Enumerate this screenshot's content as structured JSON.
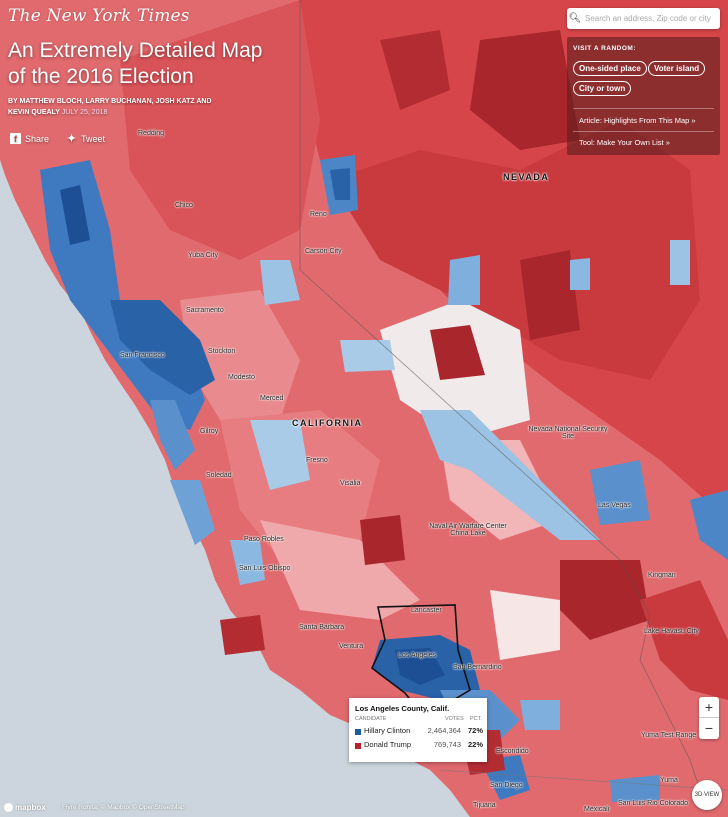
{
  "masthead": "The New York Times",
  "article": {
    "title": "An Extremely Detailed Map of the 2016 Election",
    "byline_authors": "By MATTHEW BLOCH, LARRY BUCHANAN, JOSH KATZ and KEVIN QUEALY",
    "byline_date": "JULY 25, 2018"
  },
  "share": {
    "facebook_label": "Share",
    "twitter_label": "Tweet"
  },
  "search": {
    "placeholder": "Search an address, Zip code or city"
  },
  "random_panel": {
    "heading": "VISIT A RANDOM:",
    "buttons": [
      "One-sided place",
      "Voter island",
      "City or town"
    ],
    "links": [
      "Article: Highlights From This Map »",
      "Tool: Make Your Own List »"
    ]
  },
  "map_labels": {
    "states": [
      "NEVADA",
      "CALIFORNIA"
    ],
    "places": [
      "Redding",
      "Chico",
      "Yuba City",
      "Reno",
      "Carson City",
      "Sacramento",
      "San Francisco",
      "Stockton",
      "Modesto",
      "Gilroy",
      "Merced",
      "Soledad",
      "Fresno",
      "Visalia",
      "Nevada National Security Site",
      "Las Vegas",
      "Naval Air Warfare Center China Lake",
      "Paso Robles",
      "San Luis Obispo",
      "Kingman",
      "Lancaster",
      "Santa Barbara",
      "Ventura",
      "Los Angeles",
      "San Bernardino",
      "Lake Havasu City",
      "Yuma Test Range",
      "Escondido",
      "San Diego",
      "Tijuana",
      "Mexicali",
      "San Luis Rio Colorado",
      "Yuma"
    ]
  },
  "tooltip": {
    "title": "Los Angeles County, Calif.",
    "col_candidate": "CANDIDATE",
    "col_votes": "VOTES",
    "col_pct": "PCT.",
    "rows": [
      {
        "name": "Hillary Clinton",
        "votes": "2,464,364",
        "pct": "72%",
        "color": "#1c5aa0"
      },
      {
        "name": "Donald Trump",
        "votes": "769,743",
        "pct": "22%",
        "color": "#b8232b"
      }
    ]
  },
  "zoom": {
    "in": "+",
    "out": "−"
  },
  "view3d": "3D VIEW",
  "attribution": {
    "logo": "mapbox",
    "text": "Flyre Ronita; © Mapbox © OpenStreetMap"
  },
  "colors": {
    "dem": "#2f6fb5",
    "rep": "#d13a3f",
    "ocean": "#ccd5dd"
  }
}
